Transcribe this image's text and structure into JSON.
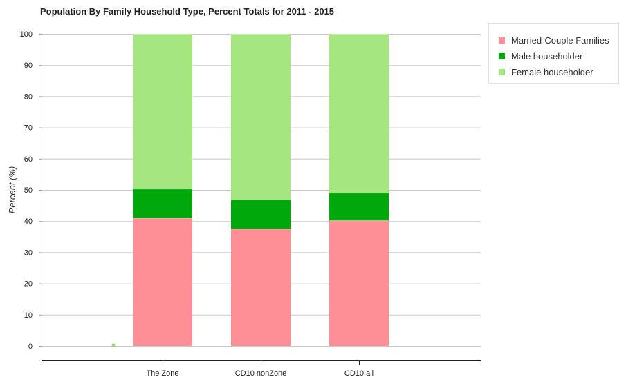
{
  "chart_data": {
    "type": "bar",
    "stacked": true,
    "title": "Population By Family Household Type, Percent Totals for 2011 - 2015",
    "xlabel": "",
    "ylabel": "Percent (%)",
    "ylim": [
      0,
      100
    ],
    "yticks": [
      0,
      10,
      20,
      30,
      40,
      50,
      60,
      70,
      80,
      90,
      100
    ],
    "grid": true,
    "legend_position": "top-right",
    "categories": [
      "The Zone",
      "CD10 nonZone",
      "CD10 all"
    ],
    "series": [
      {
        "name": "Married-Couple Families",
        "color": "#ff8f97",
        "values": [
          41,
          37.5,
          40.2
        ]
      },
      {
        "name": "Male householder",
        "color": "#00a80b",
        "values": [
          9.4,
          9.4,
          8.9
        ]
      },
      {
        "name": "Female householder",
        "color": "#a6e67f",
        "values": [
          49.6,
          53.1,
          50.9
        ]
      }
    ]
  }
}
